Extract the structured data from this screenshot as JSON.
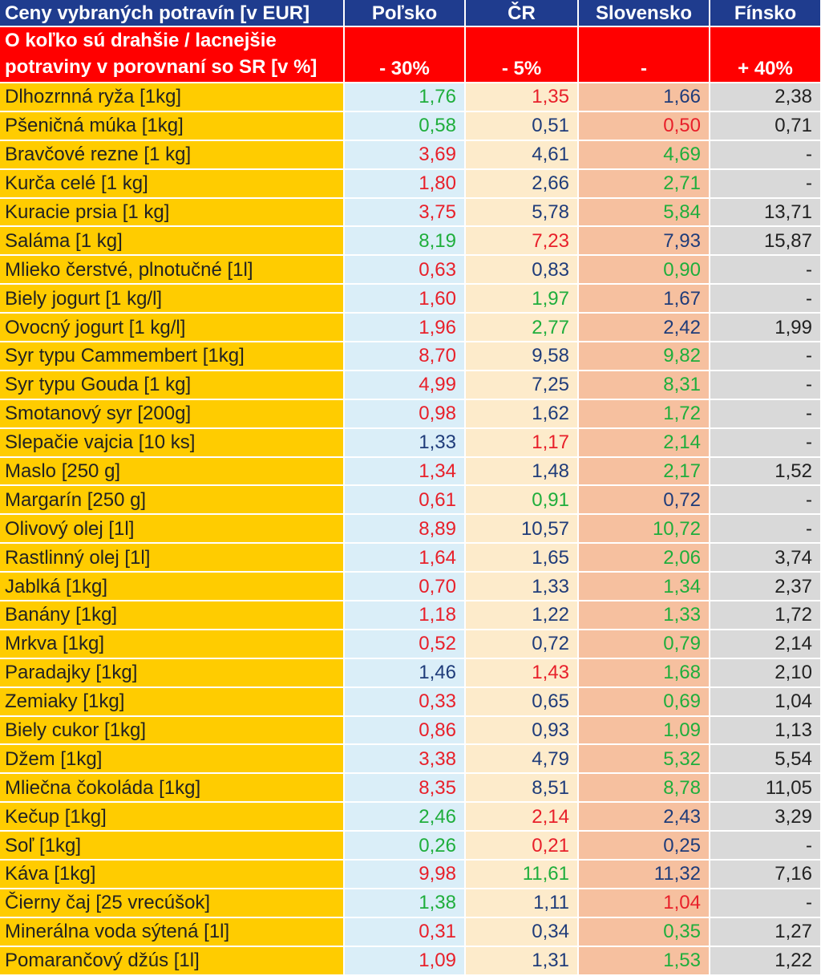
{
  "header": {
    "title": "Ceny vybraných potravín [v EUR]",
    "columns": [
      "Poľsko",
      "ČR",
      "Slovensko",
      "Fínsko"
    ]
  },
  "comparison": {
    "label_line1": "O koľko sú drahšie / lacnejšie",
    "label_line2": "potraviny v porovnaní so SR [v %]",
    "values": [
      "- 30%",
      "- 5%",
      "-",
      "+ 40%"
    ]
  },
  "colors": {
    "header_blue": "#1f3c8e",
    "header_red": "#ff0000",
    "name_yellow": "#ffcc00",
    "poland_bg": "#daeef8",
    "czech_bg": "#fdebcb",
    "slovakia_bg": "#f6c09f",
    "finland_bg": "#d9d9d9",
    "higher_red": "#e8202a",
    "lower_green": "#1fae3c",
    "neutral_blue": "#1f3c7a"
  },
  "rows": [
    {
      "name": "Dlhozrnná ryža [1kg]",
      "pl": "1,76",
      "cz": "1,35",
      "sk": "1,66",
      "fi": "2,38",
      "cls": [
        "g",
        "r",
        "b",
        "k"
      ]
    },
    {
      "name": "Pšeničná múka [1kg]",
      "pl": "0,58",
      "cz": "0,51",
      "sk": "0,50",
      "fi": "0,71",
      "cls": [
        "g",
        "b",
        "r",
        "k"
      ]
    },
    {
      "name": "Bravčové rezne [1 kg]",
      "pl": "3,69",
      "cz": "4,61",
      "sk": "4,69",
      "fi": "-",
      "cls": [
        "r",
        "b",
        "g",
        "k"
      ]
    },
    {
      "name": "Kurča celé [1 kg]",
      "pl": "1,80",
      "cz": "2,66",
      "sk": "2,71",
      "fi": "-",
      "cls": [
        "r",
        "b",
        "g",
        "k"
      ]
    },
    {
      "name": "Kuracie prsia [1 kg]",
      "pl": "3,75",
      "cz": "5,78",
      "sk": "5,84",
      "fi": "13,71",
      "cls": [
        "r",
        "b",
        "g",
        "k"
      ]
    },
    {
      "name": "Saláma [1 kg]",
      "pl": "8,19",
      "cz": "7,23",
      "sk": "7,93",
      "fi": "15,87",
      "cls": [
        "g",
        "r",
        "b",
        "k"
      ]
    },
    {
      "name": "Mlieko čerstvé, plnotučné [1l]",
      "pl": "0,63",
      "cz": "0,83",
      "sk": "0,90",
      "fi": "-",
      "cls": [
        "r",
        "b",
        "g",
        "k"
      ]
    },
    {
      "name": "Biely jogurt [1 kg/l]",
      "pl": "1,60",
      "cz": "1,97",
      "sk": "1,67",
      "fi": "-",
      "cls": [
        "r",
        "g",
        "b",
        "k"
      ]
    },
    {
      "name": "Ovocný jogurt [1 kg/l]",
      "pl": "1,96",
      "cz": "2,77",
      "sk": "2,42",
      "fi": "1,99",
      "cls": [
        "r",
        "g",
        "b",
        "k"
      ]
    },
    {
      "name": "Syr typu Cammembert [1kg]",
      "pl": "8,70",
      "cz": "9,58",
      "sk": "9,82",
      "fi": "-",
      "cls": [
        "r",
        "b",
        "g",
        "k"
      ]
    },
    {
      "name": "Syr typu Gouda [1 kg]",
      "pl": "4,99",
      "cz": "7,25",
      "sk": "8,31",
      "fi": "-",
      "cls": [
        "r",
        "b",
        "g",
        "k"
      ]
    },
    {
      "name": "Smotanový syr [200g]",
      "pl": "0,98",
      "cz": "1,62",
      "sk": "1,72",
      "fi": "-",
      "cls": [
        "r",
        "b",
        "g",
        "k"
      ]
    },
    {
      "name": "Slepačie vajcia [10 ks]",
      "pl": "1,33",
      "cz": "1,17",
      "sk": "2,14",
      "fi": "-",
      "cls": [
        "b",
        "r",
        "g",
        "k"
      ]
    },
    {
      "name": "Maslo [250 g]",
      "pl": "1,34",
      "cz": "1,48",
      "sk": "2,17",
      "fi": "1,52",
      "cls": [
        "r",
        "b",
        "g",
        "k"
      ]
    },
    {
      "name": "Margarín [250 g]",
      "pl": "0,61",
      "cz": "0,91",
      "sk": "0,72",
      "fi": "-",
      "cls": [
        "r",
        "g",
        "b",
        "k"
      ]
    },
    {
      "name": "Olivový olej [1l]",
      "pl": "8,89",
      "cz": "10,57",
      "sk": "10,72",
      "fi": "-",
      "cls": [
        "r",
        "b",
        "g",
        "k"
      ]
    },
    {
      "name": "Rastlinný olej [1l]",
      "pl": "1,64",
      "cz": "1,65",
      "sk": "2,06",
      "fi": "3,74",
      "cls": [
        "r",
        "b",
        "g",
        "k"
      ]
    },
    {
      "name": "Jablká [1kg]",
      "pl": "0,70",
      "cz": "1,33",
      "sk": "1,34",
      "fi": "2,37",
      "cls": [
        "r",
        "b",
        "g",
        "k"
      ]
    },
    {
      "name": "Banány [1kg]",
      "pl": "1,18",
      "cz": "1,22",
      "sk": "1,33",
      "fi": "1,72",
      "cls": [
        "r",
        "b",
        "g",
        "k"
      ]
    },
    {
      "name": "Mrkva [1kg]",
      "pl": "0,52",
      "cz": "0,72",
      "sk": "0,79",
      "fi": "2,14",
      "cls": [
        "r",
        "b",
        "g",
        "k"
      ]
    },
    {
      "name": "Paradajky [1kg]",
      "pl": "1,46",
      "cz": "1,43",
      "sk": "1,68",
      "fi": "2,10",
      "cls": [
        "b",
        "r",
        "g",
        "k"
      ]
    },
    {
      "name": "Zemiaky [1kg]",
      "pl": "0,33",
      "cz": "0,65",
      "sk": "0,69",
      "fi": "1,04",
      "cls": [
        "r",
        "b",
        "g",
        "k"
      ]
    },
    {
      "name": "Biely cukor [1kg]",
      "pl": "0,86",
      "cz": "0,93",
      "sk": "1,09",
      "fi": "1,13",
      "cls": [
        "r",
        "b",
        "g",
        "k"
      ]
    },
    {
      "name": "Džem [1kg]",
      "pl": "3,38",
      "cz": "4,79",
      "sk": "5,32",
      "fi": "5,54",
      "cls": [
        "r",
        "b",
        "g",
        "k"
      ]
    },
    {
      "name": "Mliečna čokoláda [1kg]",
      "pl": "8,35",
      "cz": "8,51",
      "sk": "8,78",
      "fi": "11,05",
      "cls": [
        "r",
        "b",
        "g",
        "k"
      ]
    },
    {
      "name": "Kečup [1kg]",
      "pl": "2,46",
      "cz": "2,14",
      "sk": "2,43",
      "fi": "3,29",
      "cls": [
        "g",
        "r",
        "b",
        "k"
      ]
    },
    {
      "name": "Soľ [1kg]",
      "pl": "0,26",
      "cz": "0,21",
      "sk": "0,25",
      "fi": "-",
      "cls": [
        "g",
        "r",
        "b",
        "k"
      ]
    },
    {
      "name": "Káva [1kg]",
      "pl": "9,98",
      "cz": "11,61",
      "sk": "11,32",
      "fi": "7,16",
      "cls": [
        "r",
        "g",
        "b",
        "k"
      ]
    },
    {
      "name": "Čierny čaj [25 vrecúšok]",
      "pl": "1,38",
      "cz": "1,11",
      "sk": "1,04",
      "fi": "-",
      "cls": [
        "g",
        "b",
        "r",
        "k"
      ]
    },
    {
      "name": "Minerálna voda sýtená [1l]",
      "pl": "0,31",
      "cz": "0,34",
      "sk": "0,35",
      "fi": "1,27",
      "cls": [
        "r",
        "b",
        "g",
        "k"
      ]
    },
    {
      "name": "Pomarančový džús [1l]",
      "pl": "1,09",
      "cz": "1,31",
      "sk": "1,53",
      "fi": "1,22",
      "cls": [
        "r",
        "b",
        "g",
        "k"
      ]
    }
  ]
}
